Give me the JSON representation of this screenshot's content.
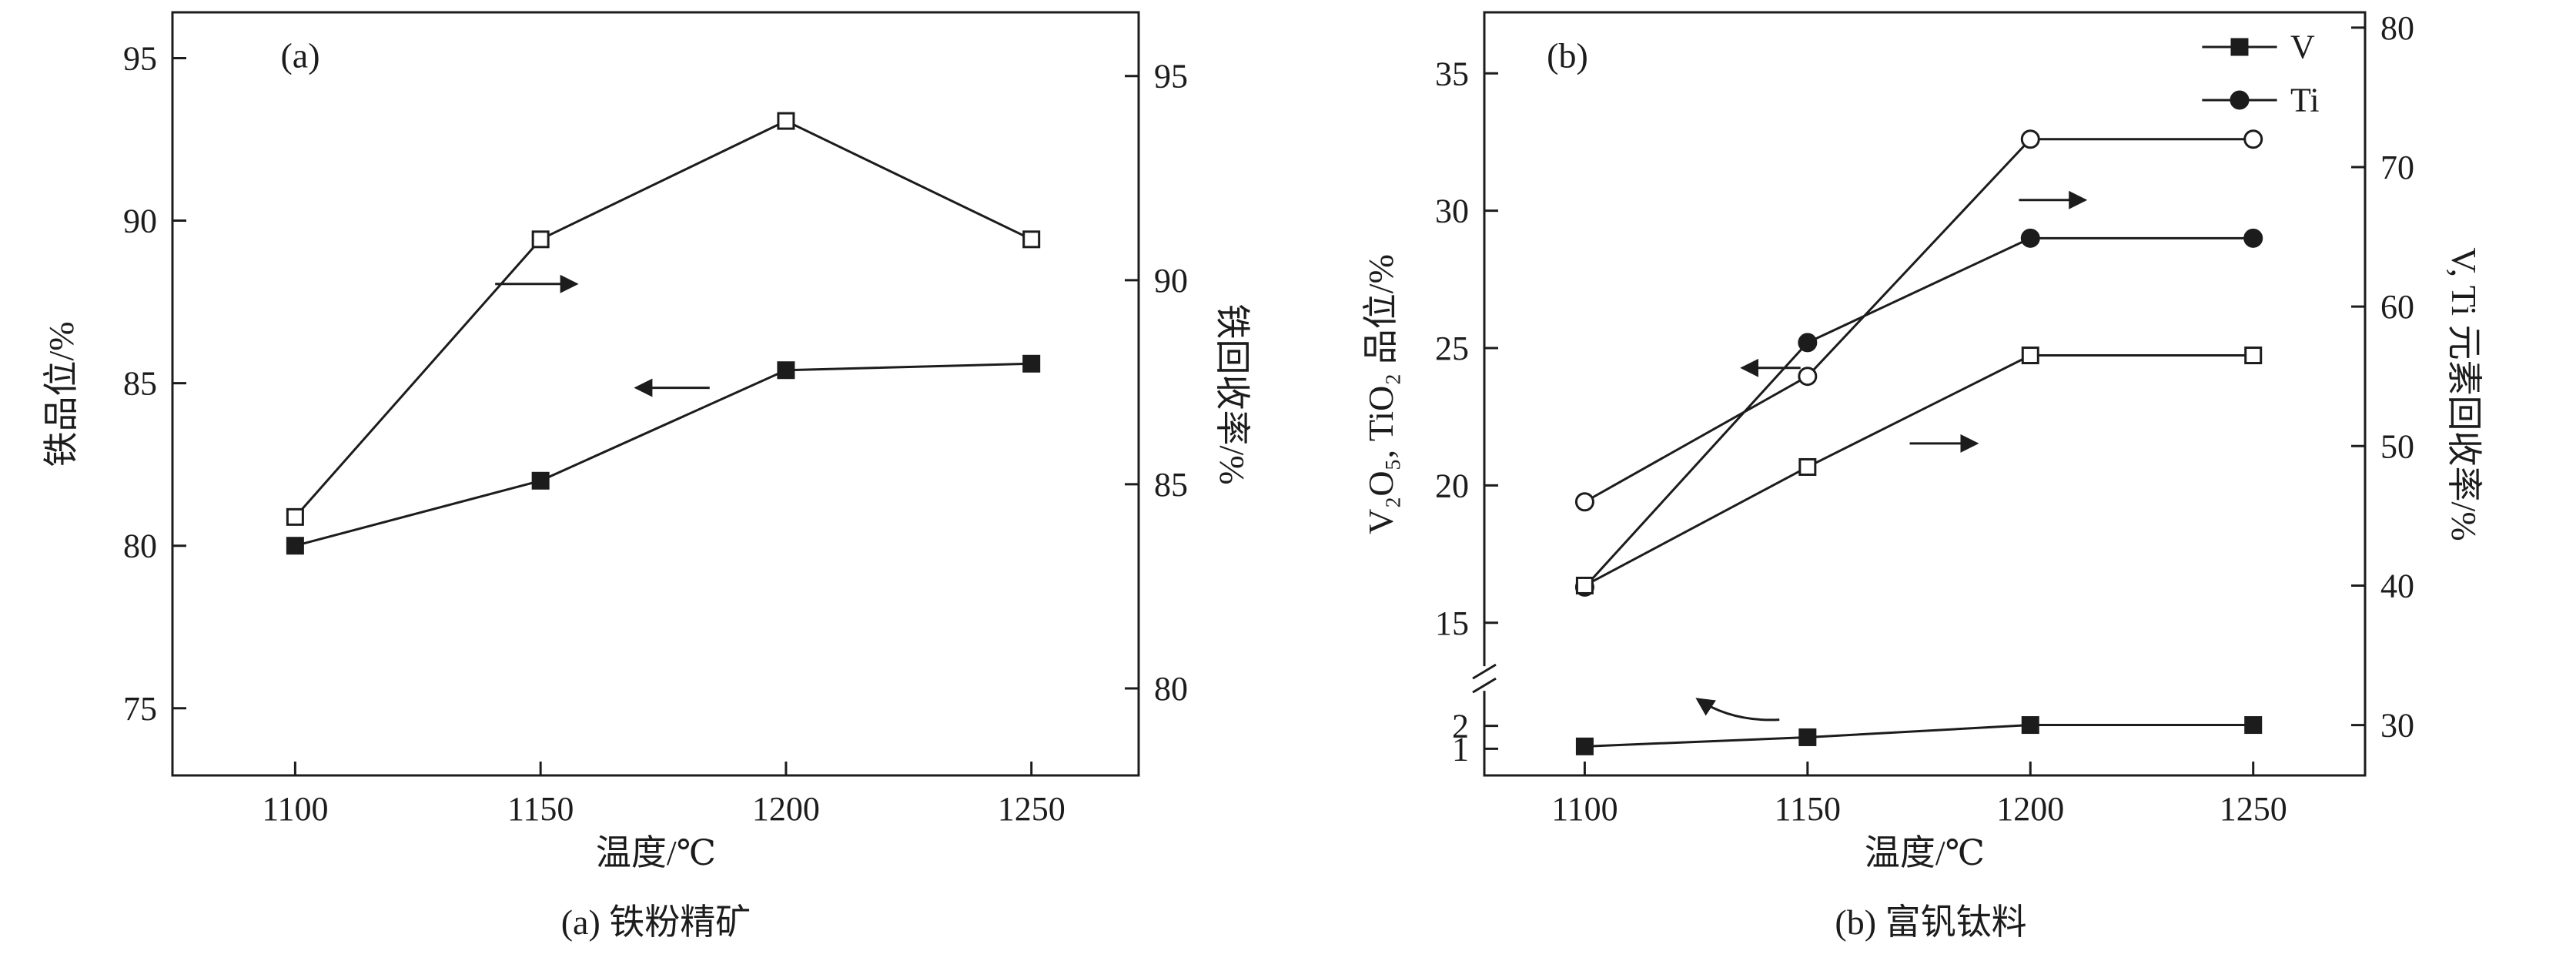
{
  "figure": {
    "background": "#ffffff",
    "ink": "#1c1c1c"
  },
  "chart_data": [
    {
      "id": "a",
      "type": "line",
      "panel_label": "(a)",
      "caption": "(a) 铁粉精矿",
      "xlabel": "温度/℃",
      "grid": false,
      "x_ticks": [
        "1100",
        "1150",
        "1200",
        "1250"
      ],
      "x_values": [
        1100,
        1150,
        1200,
        1250
      ],
      "xlim": [
        1075,
        1272
      ],
      "x_stops": [
        [
          1100,
          0.127
        ],
        [
          1250,
          0.889
        ]
      ],
      "left_axis": {
        "label": "铁品位/%",
        "ticks": [
          75,
          80,
          85,
          90,
          95
        ],
        "lim": [
          72.9,
          96.4
        ],
        "stops": [
          [
            75,
            0.912
          ],
          [
            95,
            0.06
          ]
        ]
      },
      "right_axis": {
        "label": "铁回收率/%",
        "ticks": [
          80,
          85,
          90,
          95
        ],
        "lim": [
          77.9,
          96.6
        ],
        "stops": [
          [
            80,
            0.886
          ],
          [
            95,
            0.0835
          ]
        ]
      },
      "series": [
        {
          "name": "铁品位",
          "axis": "left",
          "marker": "square",
          "fill": "filled",
          "values": [
            80.0,
            82.0,
            85.4,
            85.6
          ]
        },
        {
          "name": "铁回收率",
          "axis": "right",
          "marker": "square",
          "fill": "open",
          "values": [
            84.2,
            91.0,
            93.9,
            91.0
          ]
        }
      ],
      "arrows": [
        {
          "fx1": 0.334,
          "fy1": 0.356,
          "fx2": 0.418,
          "fy2": 0.356
        },
        {
          "fx1": 0.556,
          "fy1": 0.492,
          "fx2": 0.48,
          "fy2": 0.492
        }
      ]
    },
    {
      "id": "b",
      "type": "line",
      "panel_label": "(b)",
      "caption": "(b) 富钒钛料",
      "xlabel": "温度/℃",
      "grid": false,
      "x_ticks": [
        "1100",
        "1150",
        "1200",
        "1250"
      ],
      "x_values": [
        1100,
        1150,
        1200,
        1250
      ],
      "xlim": [
        1078,
        1275
      ],
      "x_stops": [
        [
          1100,
          0.114
        ],
        [
          1250,
          0.873
        ]
      ],
      "left_axis": {
        "label": "V₂O₅, TiO₂ 品位/%",
        "ticks": [
          1,
          2,
          15,
          20,
          25,
          30,
          35
        ],
        "lim": [
          0.5,
          37
        ],
        "broken": true,
        "break_frac": 0.873,
        "stops": [
          [
            1,
            0.965
          ],
          [
            2,
            0.935
          ],
          [
            15,
            0.8
          ],
          [
            35,
            0.08
          ]
        ]
      },
      "right_axis": {
        "label": "V, Ti 元素回收率/%",
        "ticks": [
          30,
          40,
          50,
          60,
          70,
          80
        ],
        "lim": [
          26.4,
          81.1
        ],
        "stops": [
          [
            30,
            0.934
          ],
          [
            80,
            0.02
          ]
        ]
      },
      "legend_position": "top-right",
      "legend": [
        {
          "label": "V",
          "marker": "square",
          "fill": "filled"
        },
        {
          "label": "Ti",
          "marker": "circle",
          "fill": "filled"
        }
      ],
      "series": [
        {
          "name": "V₂O₅品位",
          "axis": "left",
          "marker": "square",
          "fill": "filled",
          "values": [
            1.1,
            1.5,
            2.1,
            2.1
          ]
        },
        {
          "name": "TiO₂品位",
          "axis": "left",
          "marker": "circle",
          "fill": "filled",
          "values": [
            16.3,
            25.2,
            29.0,
            29.0
          ]
        },
        {
          "name": "V回收率",
          "axis": "right",
          "marker": "square",
          "fill": "open",
          "values": [
            40.0,
            48.5,
            56.5,
            56.5
          ]
        },
        {
          "name": "Ti回收率",
          "axis": "right",
          "marker": "circle",
          "fill": "open",
          "values": [
            46.0,
            55.0,
            72.0,
            72.0
          ]
        }
      ],
      "arrows": [
        {
          "fx1": 0.359,
          "fy1": 0.466,
          "fx2": 0.293,
          "fy2": 0.466
        },
        {
          "fx1": 0.607,
          "fy1": 0.246,
          "fx2": 0.682,
          "fy2": 0.246
        },
        {
          "fx1": 0.483,
          "fy1": 0.565,
          "fx2": 0.559,
          "fy2": 0.565
        },
        {
          "fx1": 0.335,
          "fy1": 0.927,
          "fcx": 0.281,
          "fcy": 0.93,
          "fx2": 0.242,
          "fy2": 0.9
        }
      ]
    }
  ]
}
